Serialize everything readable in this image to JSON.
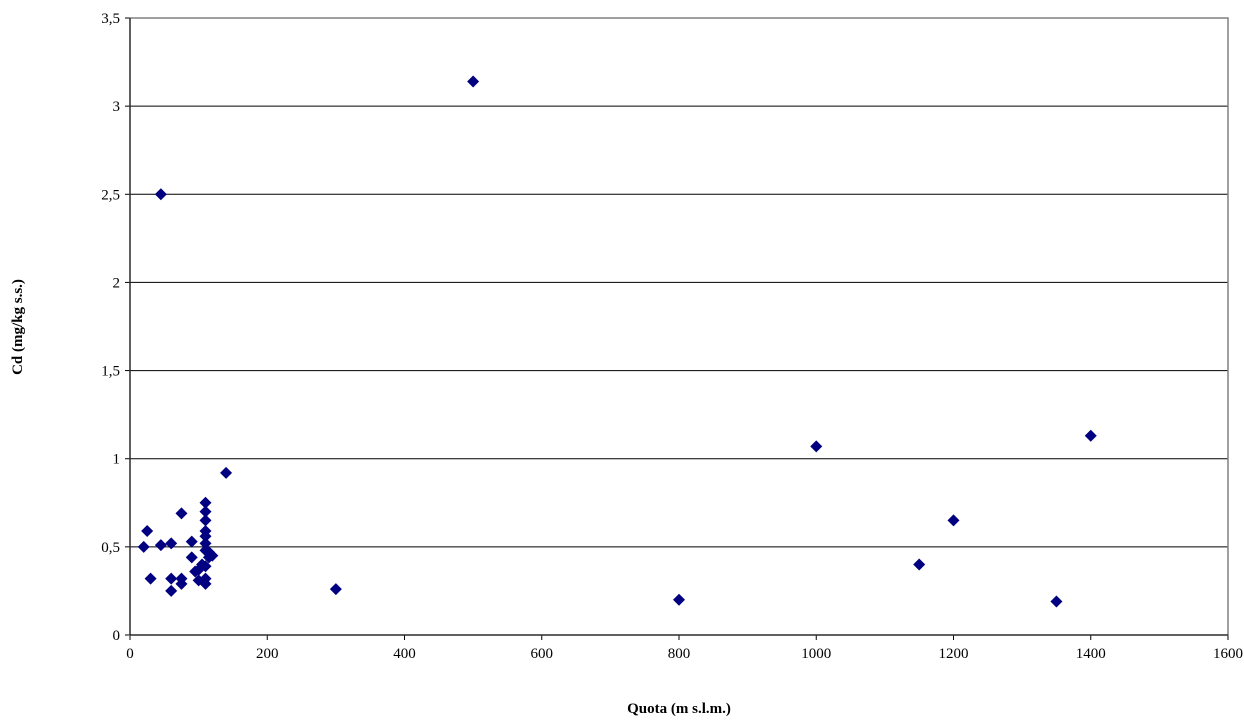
{
  "chart_data": {
    "type": "scatter",
    "x_label": "Quota (m s.l.m.)",
    "y_label": "Cd (mg/kg s.s.)",
    "color": "#000080",
    "grid": true,
    "xlim": [
      0,
      1600
    ],
    "xticks": [
      0,
      200,
      400,
      600,
      800,
      1000,
      1200,
      1400,
      1600
    ],
    "ylim": [
      0,
      3.5
    ],
    "yticks": [
      0,
      {
        "value": 0.5,
        "label": "0,5"
      },
      1,
      {
        "value": 1.5,
        "label": "1,5"
      },
      2,
      {
        "value": 2.5,
        "label": "2,5"
      },
      3,
      {
        "value": 3.5,
        "label": "3,5"
      }
    ],
    "x": [
      45,
      500,
      140,
      1000,
      1400,
      1200,
      1150,
      1350,
      800,
      300,
      20,
      25,
      30,
      45,
      60,
      60,
      60,
      75,
      75,
      75,
      90,
      90,
      95,
      100,
      105,
      110,
      110,
      110,
      110,
      110,
      110,
      110,
      110,
      110,
      110,
      115,
      120,
      100,
      115
    ],
    "values": [
      2.5,
      3.14,
      0.92,
      1.07,
      1.13,
      0.65,
      0.4,
      0.19,
      0.2,
      0.26,
      0.5,
      0.59,
      0.32,
      0.51,
      0.52,
      0.32,
      0.25,
      0.69,
      0.32,
      0.29,
      0.53,
      0.44,
      0.36,
      0.31,
      0.4,
      0.75,
      0.7,
      0.65,
      0.59,
      0.56,
      0.52,
      0.48,
      0.39,
      0.32,
      0.29,
      0.47,
      0.45,
      0.37,
      0.44
    ]
  }
}
